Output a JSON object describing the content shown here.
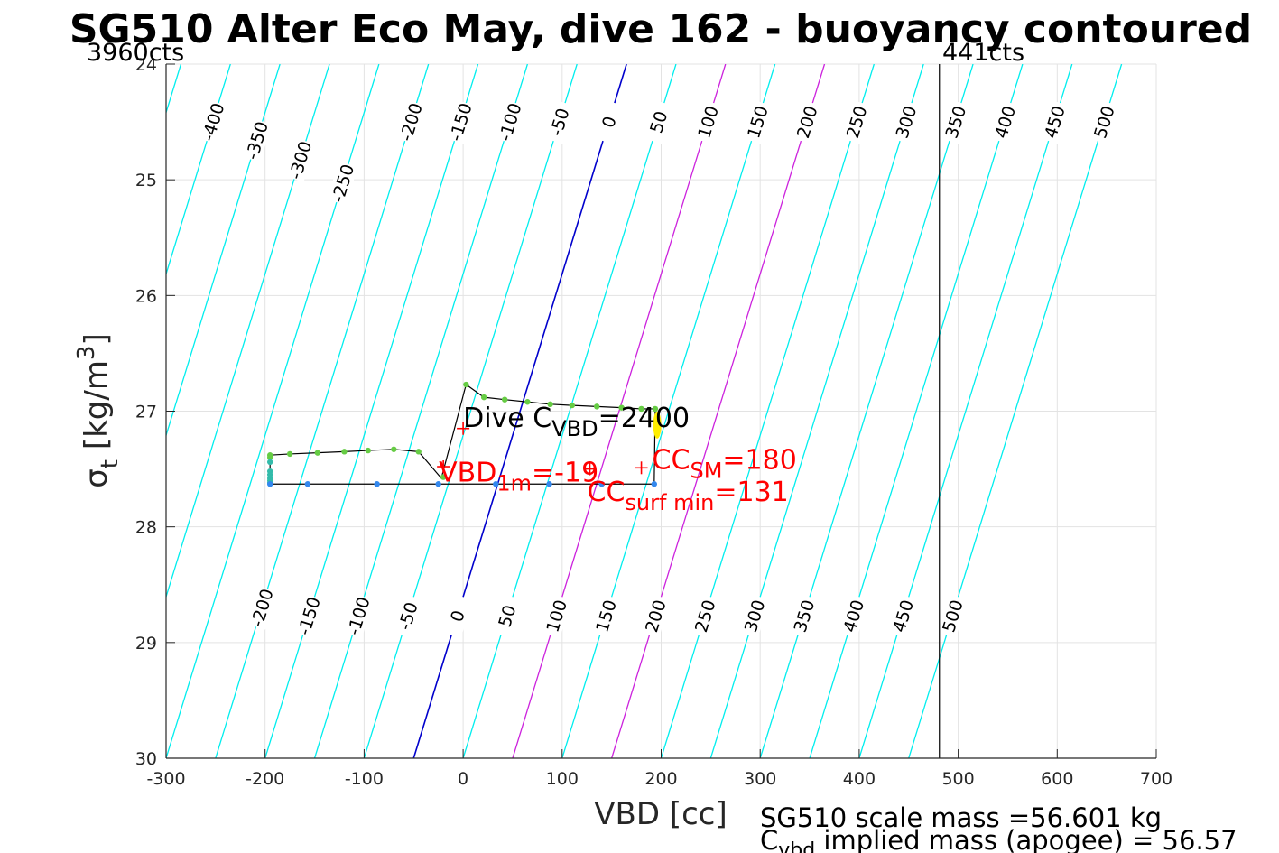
{
  "chart_data": {
    "type": "scatter",
    "title": "SG510 Alter Eco May, dive 162 - buoyancy contoured",
    "xlabel": "VBD [cc]",
    "ylabel_base": "σ",
    "ylabel_sub": "t",
    "ylabel_rest": " [kg/m",
    "ylabel_sup": "3",
    "ylabel_end": "]",
    "xlim": [
      -300,
      700
    ],
    "ylim": [
      24,
      30
    ],
    "y_reversed": true,
    "grid": true,
    "xticks": [
      -300,
      -200,
      -100,
      0,
      100,
      200,
      300,
      400,
      500,
      600,
      700
    ],
    "xtick_labels": [
      "-300",
      "-200",
      "-100",
      "0",
      "100",
      "200",
      "300",
      "400",
      "500",
      "600",
      "700"
    ],
    "yticks": [
      24,
      25,
      26,
      27,
      28,
      29,
      30
    ],
    "ytick_labels": [
      "24",
      "25",
      "26",
      "27",
      "28",
      "29",
      "30"
    ],
    "buoyancy_contours": {
      "values": [
        -450,
        -400,
        -350,
        -300,
        -250,
        -200,
        -150,
        -100,
        -50,
        0,
        50,
        100,
        150,
        200,
        250,
        300,
        350,
        400,
        450,
        500
      ],
      "vbd_at_sigma_30": [
        -500,
        -450,
        -400,
        -350,
        -300,
        -250,
        -200,
        -150,
        -100,
        -50,
        0,
        50,
        100,
        150,
        200,
        250,
        300,
        350,
        400,
        450
      ],
      "vbd_at_sigma_24": [
        -285,
        -235,
        -185,
        -135,
        -85,
        -35,
        15,
        65,
        115,
        165,
        215,
        265,
        315,
        365,
        415,
        465,
        515,
        565,
        615,
        665
      ],
      "zero_contour_color": "#0000cc",
      "highlight_contours": [
        100,
        200
      ],
      "highlight_color": "#cc22dd",
      "other_color": "#00eeee",
      "upper_labels": [
        "-400",
        "-350",
        "-300",
        "-250",
        "-200",
        "-150",
        "-100",
        "-50",
        "0",
        "50",
        "100",
        "150",
        "200",
        "250",
        "300",
        "350",
        "400",
        "450",
        "500"
      ],
      "lower_labels": [
        "-200",
        "-150",
        "-100",
        "-50",
        "0",
        "50",
        "100",
        "150",
        "200",
        "250",
        "300",
        "350",
        "400",
        "450",
        "500"
      ]
    },
    "vertical_line": {
      "x": 481,
      "top_label_left": "3960cts",
      "top_label_right": "441cts"
    },
    "series": [
      {
        "color": "#66cc44",
        "x": [
          -195,
          -195,
          -175,
          -147,
          -120,
          -96,
          -70,
          -45,
          -20,
          3,
          21,
          42,
          65,
          88,
          110,
          135,
          160,
          180,
          194
        ],
        "y": [
          27.38,
          27.4,
          27.37,
          27.36,
          27.35,
          27.34,
          27.33,
          27.35,
          27.57,
          26.77,
          26.88,
          26.9,
          26.92,
          26.94,
          26.95,
          26.96,
          26.97,
          26.98,
          26.98
        ]
      },
      {
        "color": "#33bbaa",
        "x": [
          -195,
          -195,
          -195,
          -195,
          -195,
          -195
        ],
        "y": [
          27.44,
          27.52,
          27.55,
          27.58,
          27.6,
          27.62
        ]
      },
      {
        "color": "#3388ee",
        "x": [
          -195,
          -157,
          -87,
          -25,
          33,
          87,
          140,
          193
        ],
        "y": [
          27.63,
          27.63,
          27.63,
          27.63,
          27.63,
          27.63,
          27.63,
          27.63
        ]
      }
    ],
    "trace": {
      "x": [
        -195,
        -175,
        -147,
        -120,
        -96,
        -70,
        -45,
        -22,
        3,
        21,
        42,
        65,
        88,
        110,
        135,
        160,
        180,
        194,
        193,
        140,
        87,
        33,
        -25,
        -87,
        -157,
        -195,
        -195
      ],
      "y": [
        27.38,
        27.37,
        27.36,
        27.35,
        27.34,
        27.33,
        27.35,
        27.58,
        26.77,
        26.88,
        26.9,
        26.92,
        26.94,
        26.95,
        26.96,
        26.97,
        26.98,
        26.98,
        27.63,
        27.63,
        27.63,
        27.63,
        27.63,
        27.63,
        27.63,
        27.63,
        27.38
      ]
    },
    "yellow_marker": {
      "x": 196,
      "y": 27.12
    },
    "plus_markers": [
      {
        "x": 0,
        "y": 27.15
      },
      {
        "x": -20,
        "y": 27.48
      },
      {
        "x": 128,
        "y": 27.5
      },
      {
        "x": 180,
        "y": 27.49
      }
    ],
    "annotations": {
      "dive_cvbd": {
        "pre": "Dive C",
        "sub": "VBD",
        "post": "=2400",
        "x": 0,
        "y": 27.06
      },
      "vbd_1m": {
        "pre": "VBD",
        "sub": "1m",
        "post": "=-19",
        "x": -20,
        "y": 27.53
      },
      "cc_sm": {
        "pre": "CC",
        "sub": "SM",
        "post": "=180",
        "x": 180,
        "y": 27.42
      },
      "cc_surf_min": {
        "pre": "CC",
        "sub": "surf min",
        "post": "=131",
        "x": 128,
        "y": 27.7
      }
    },
    "footer": {
      "line1": "SG510 scale mass =56.601 kg",
      "line2_pre": "C",
      "line2_sub": "vbd",
      "line2_post": " implied mass (apogee) = 56.57"
    }
  }
}
